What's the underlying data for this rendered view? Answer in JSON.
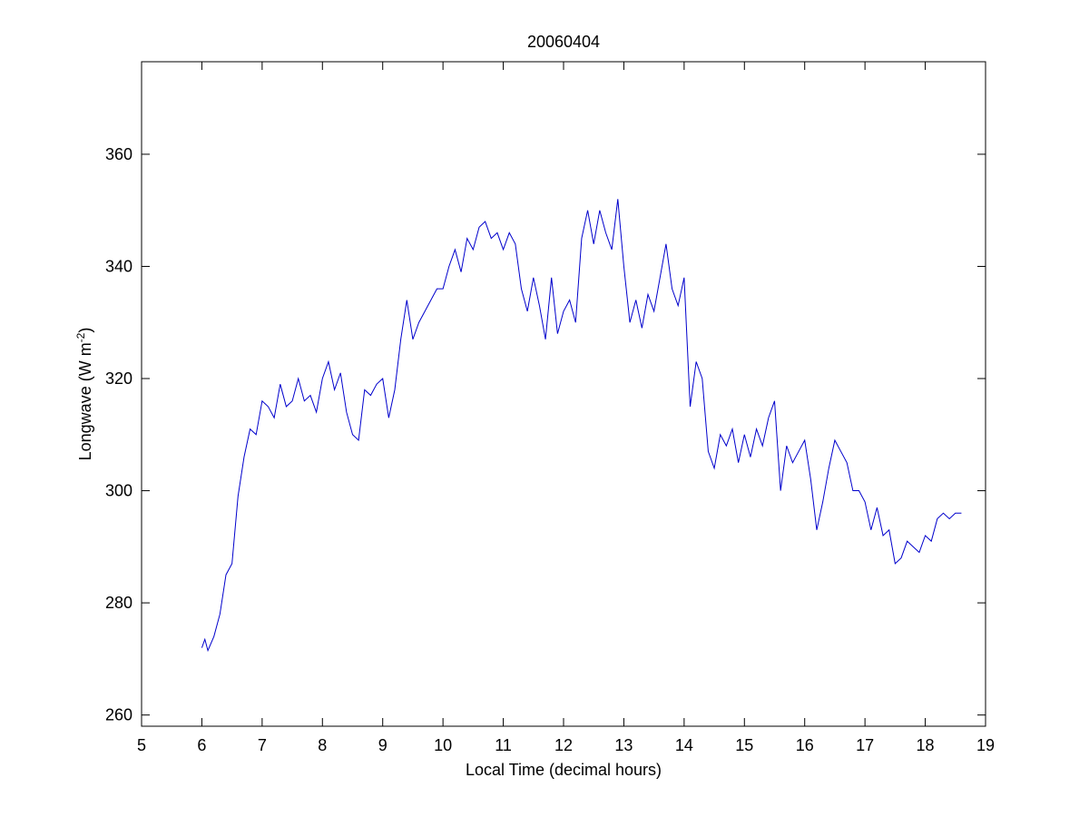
{
  "chart_data": {
    "type": "line",
    "title": "20060404",
    "x_label": "Local Time (decimal hours)",
    "y_label": {
      "text": "Longwave (W m",
      "superscript": "-2",
      "suffix": ")"
    },
    "x": [
      6.0,
      6.05,
      6.1,
      6.2,
      6.3,
      6.4,
      6.5,
      6.6,
      6.7,
      6.8,
      6.9,
      7.0,
      7.1,
      7.2,
      7.3,
      7.4,
      7.5,
      7.6,
      7.7,
      7.8,
      7.9,
      8.0,
      8.1,
      8.2,
      8.3,
      8.4,
      8.5,
      8.6,
      8.7,
      8.8,
      8.9,
      9.0,
      9.1,
      9.2,
      9.3,
      9.4,
      9.5,
      9.6,
      9.7,
      9.8,
      9.9,
      10.0,
      10.1,
      10.2,
      10.3,
      10.4,
      10.5,
      10.6,
      10.7,
      10.8,
      10.9,
      11.0,
      11.1,
      11.2,
      11.3,
      11.4,
      11.5,
      11.6,
      11.7,
      11.8,
      11.9,
      12.0,
      12.1,
      12.2,
      12.3,
      12.4,
      12.5,
      12.6,
      12.7,
      12.8,
      12.9,
      13.0,
      13.1,
      13.2,
      13.3,
      13.4,
      13.5,
      13.6,
      13.7,
      13.8,
      13.9,
      14.0,
      14.1,
      14.2,
      14.3,
      14.4,
      14.5,
      14.6,
      14.7,
      14.8,
      14.9,
      15.0,
      15.1,
      15.2,
      15.3,
      15.4,
      15.5,
      15.6,
      15.7,
      15.8,
      15.9,
      16.0,
      16.1,
      16.2,
      16.3,
      16.4,
      16.5,
      16.6,
      16.7,
      16.8,
      16.9,
      17.0,
      17.1,
      17.2,
      17.3,
      17.4,
      17.5,
      17.6,
      17.7,
      17.8,
      17.9,
      18.0,
      18.1,
      18.2,
      18.3,
      18.4,
      18.5,
      18.6
    ],
    "series": [
      {
        "color": "#0000cc",
        "values": [
          272,
          273.5,
          271.5,
          274,
          278,
          285,
          287,
          299,
          306,
          311,
          310,
          316,
          315,
          313,
          319,
          315,
          316,
          320,
          316,
          317,
          314,
          320,
          323,
          318,
          321,
          314,
          310,
          309,
          318,
          317,
          319,
          320,
          313,
          318,
          327,
          334,
          327,
          330,
          332,
          334,
          336,
          336,
          340,
          343,
          339,
          345,
          343,
          347,
          348,
          345,
          346,
          343,
          346,
          344,
          336,
          332,
          338,
          333,
          327,
          338,
          328,
          332,
          334,
          330,
          345,
          350,
          344,
          350,
          346,
          343,
          352,
          340,
          330,
          334,
          329,
          335,
          332,
          338,
          344,
          336,
          333,
          338,
          315,
          323,
          320,
          307,
          304,
          310,
          308,
          311,
          305,
          310,
          306,
          311,
          308,
          313,
          316,
          300,
          308,
          305,
          307,
          309,
          302,
          293,
          298,
          304,
          309,
          307,
          305,
          300,
          300,
          298,
          293,
          297,
          292,
          293,
          287,
          288,
          291,
          290,
          289,
          292,
          291,
          295,
          296,
          295,
          296,
          296
        ]
      }
    ],
    "xlim": [
      5,
      19
    ],
    "xticks": [
      5,
      6,
      7,
      8,
      9,
      10,
      11,
      12,
      13,
      14,
      15,
      16,
      17,
      18,
      19
    ],
    "ylim": [
      258,
      376.5
    ],
    "yticks": [
      260,
      280,
      300,
      320,
      340,
      360
    ],
    "grid": false
  }
}
